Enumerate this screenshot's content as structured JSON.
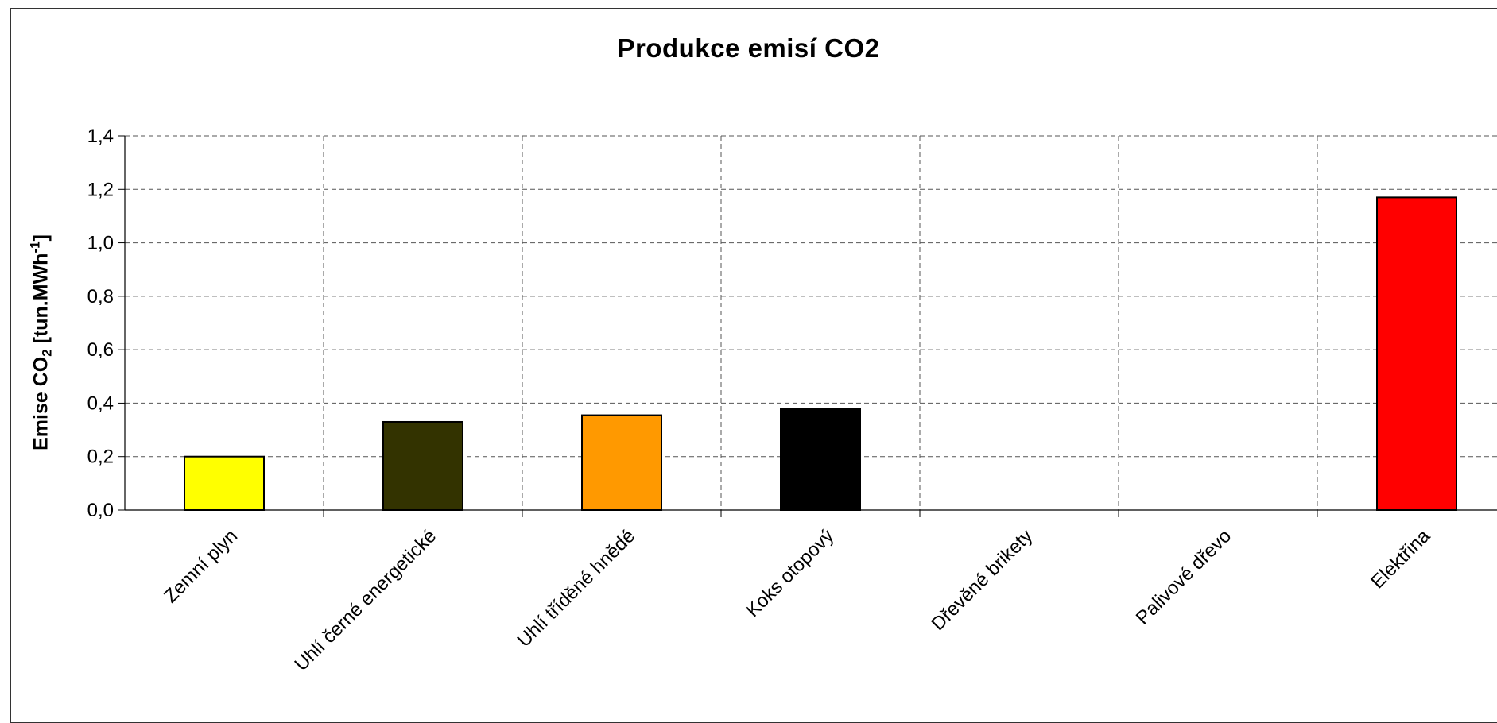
{
  "chart_data": {
    "type": "bar",
    "title_main": "Produkce emisí CO",
    "title_sub": "2",
    "ylabel_main": "Emise CO",
    "ylabel_sub": "2",
    "ylabel_unit": " [tun.MWh",
    "ylabel_sup": "-1",
    "ylabel_close": "]",
    "categories": [
      "Zemní plyn",
      "Uhlí černé energetické",
      "Uhlí tříděné hnědé",
      "Koks otopový",
      "Dřevěné brikety",
      "Palivové dřevo",
      "Elektřina"
    ],
    "values": [
      0.2,
      0.33,
      0.355,
      0.38,
      null,
      null,
      1.17
    ],
    "colors": [
      "#ffff00",
      "#333300",
      "#ff9900",
      "#000000",
      null,
      null,
      "#ff0000"
    ],
    "ylim": [
      0,
      1.4
    ],
    "yticks": [
      "0,0",
      "0,2",
      "0,4",
      "0,6",
      "0,8",
      "1,0",
      "1,2",
      "1,4"
    ],
    "grid": true,
    "grid_style": "dashed"
  }
}
